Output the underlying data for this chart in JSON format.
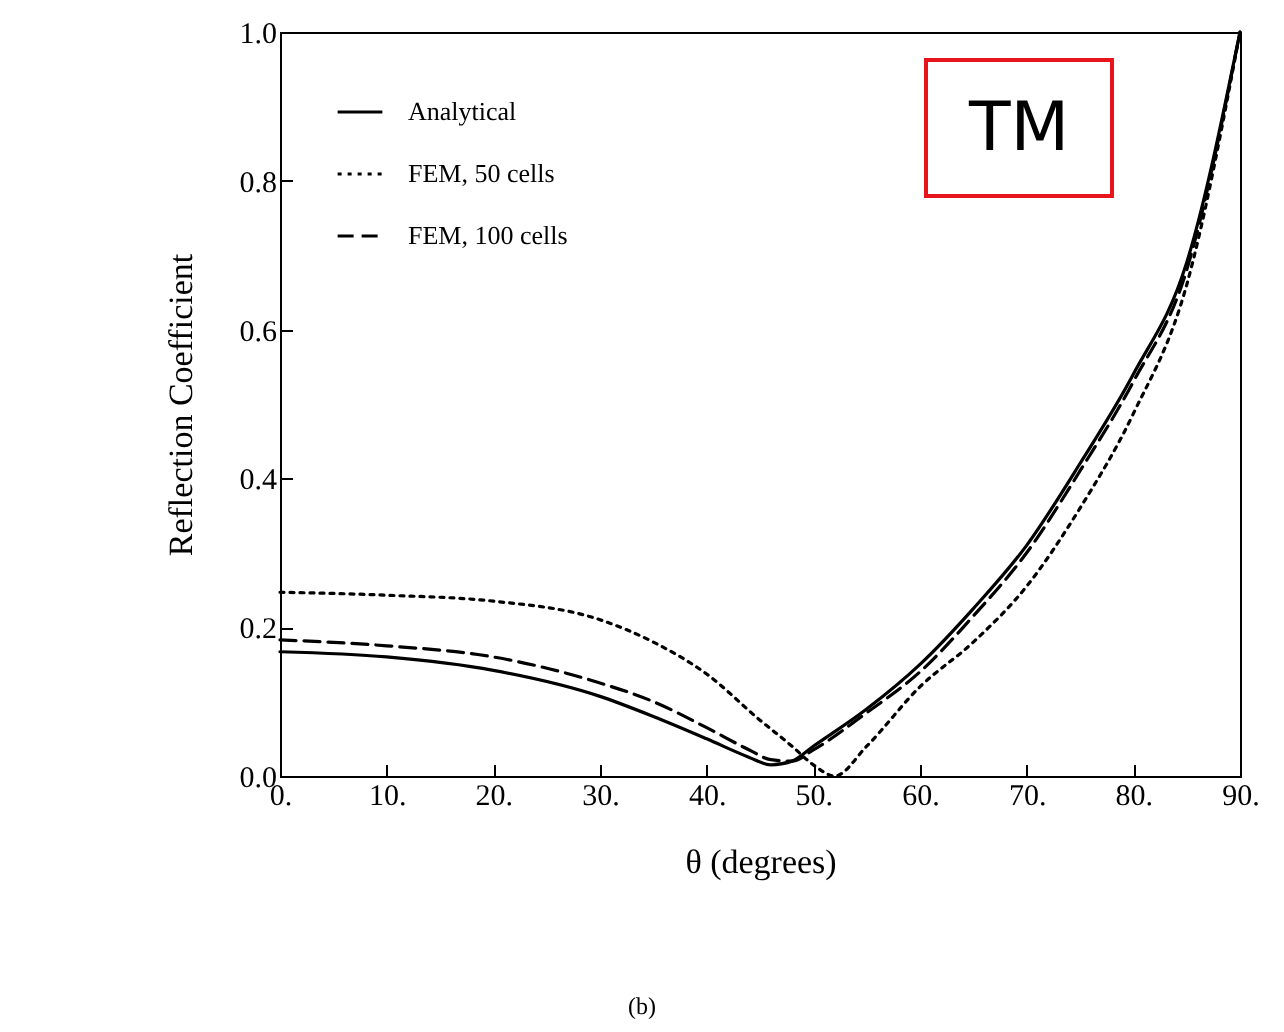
{
  "chart_data": {
    "type": "line",
    "xlabel": "θ (degrees)",
    "ylabel": "Reflection Coefficient",
    "annotations": [
      "TM",
      "(b)"
    ],
    "xlim": [
      0,
      90
    ],
    "ylim": [
      0,
      1
    ],
    "xticks": [
      {
        "value": 0,
        "label": "0."
      },
      {
        "value": 10,
        "label": "10."
      },
      {
        "value": 20,
        "label": "20."
      },
      {
        "value": 30,
        "label": "30."
      },
      {
        "value": 40,
        "label": "40."
      },
      {
        "value": 50,
        "label": "50."
      },
      {
        "value": 60,
        "label": "60."
      },
      {
        "value": 70,
        "label": "70."
      },
      {
        "value": 80,
        "label": "80."
      },
      {
        "value": 90,
        "label": "90."
      }
    ],
    "yticks": [
      {
        "value": 0,
        "label": "0.0"
      },
      {
        "value": 0.2,
        "label": "0.2"
      },
      {
        "value": 0.4,
        "label": "0.4"
      },
      {
        "value": 0.6,
        "label": "0.6"
      },
      {
        "value": 0.8,
        "label": "0.8"
      },
      {
        "value": 1,
        "label": "1.0"
      }
    ],
    "grid": false,
    "legend": "top left",
    "series": [
      {
        "name": "Analytical",
        "color": "#000000",
        "line_style": "solid",
        "x": [
          0,
          10,
          20,
          30,
          35,
          40,
          44,
          46,
          48,
          50,
          55,
          60,
          65,
          70,
          75,
          80,
          85,
          90
        ],
        "values": [
          0.167,
          0.16,
          0.142,
          0.107,
          0.08,
          0.05,
          0.025,
          0.015,
          0.02,
          0.04,
          0.09,
          0.15,
          0.225,
          0.31,
          0.42,
          0.54,
          0.69,
          1.0
        ]
      },
      {
        "name": "FEM, 50 cells",
        "color": "#000000",
        "line_style": "dotted",
        "x": [
          0,
          10,
          20,
          30,
          35,
          40,
          45,
          48,
          50,
          52,
          55,
          60,
          65,
          70,
          75,
          80,
          85,
          90
        ],
        "values": [
          0.247,
          0.243,
          0.235,
          0.21,
          0.18,
          0.137,
          0.075,
          0.04,
          0.015,
          0.0,
          0.04,
          0.12,
          0.18,
          0.255,
          0.36,
          0.487,
          0.66,
          1.0
        ]
      },
      {
        "name": "FEM, 100 cells",
        "color": "#000000",
        "line_style": "dashed",
        "x": [
          0,
          10,
          20,
          30,
          35,
          40,
          44,
          46,
          48,
          50,
          55,
          60,
          65,
          70,
          75,
          80,
          85,
          90
        ],
        "values": [
          0.183,
          0.175,
          0.16,
          0.125,
          0.1,
          0.065,
          0.035,
          0.022,
          0.02,
          0.035,
          0.085,
          0.14,
          0.215,
          0.3,
          0.41,
          0.53,
          0.68,
          1.0
        ]
      }
    ]
  }
}
